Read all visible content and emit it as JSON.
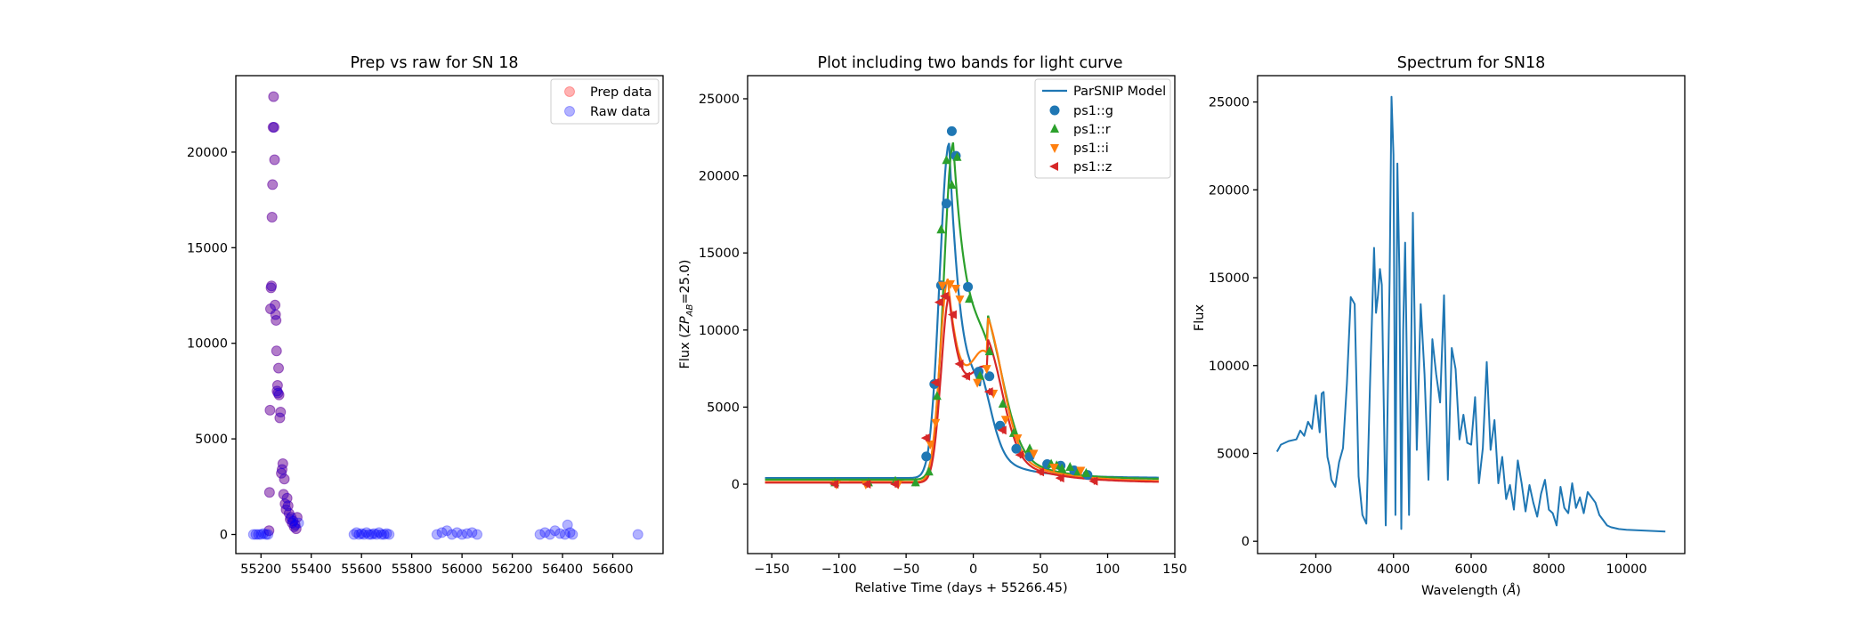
{
  "chart_data": [
    {
      "type": "scatter",
      "title": "Prep vs raw for SN 18",
      "xlabel": "",
      "ylabel": "",
      "xlim": [
        55100,
        56800
      ],
      "ylim": [
        -1000,
        24000
      ],
      "xticks": [
        "55200",
        "55400",
        "55600",
        "55800",
        "56000",
        "56200",
        "56400",
        "56600"
      ],
      "yticks": [
        "0",
        "5000",
        "10000",
        "15000",
        "20000"
      ],
      "legend_position": "top-right",
      "series": [
        {
          "name": "Prep data",
          "color": "#ff0000",
          "x": [
            55232,
            55234,
            55236,
            55238,
            55240,
            55242,
            55244,
            55246,
            55248,
            55250,
            55252,
            55254,
            55256,
            55258,
            55260,
            55262,
            55264,
            55266,
            55268,
            55270,
            55272,
            55275,
            55278,
            55281,
            55284,
            55287,
            55290,
            55293,
            55296,
            55300,
            55304,
            55308,
            55312,
            55316,
            55320,
            55324,
            55328,
            55332,
            55336,
            55340,
            55344
          ],
          "y": [
            200,
            2200,
            6500,
            11800,
            12900,
            13000,
            16600,
            18300,
            21300,
            22900,
            21300,
            19600,
            12000,
            11500,
            11200,
            9600,
            7500,
            7800,
            7400,
            8700,
            7300,
            6100,
            6400,
            3200,
            3400,
            3700,
            2100,
            2900,
            1600,
            1300,
            1900,
            1500,
            1100,
            800,
            900,
            600,
            700,
            400,
            500,
            300,
            900
          ]
        },
        {
          "name": "Raw data",
          "color": "#0000ff",
          "x": [
            55170,
            55180,
            55190,
            55200,
            55210,
            55220,
            55228,
            55232,
            55234,
            55236,
            55238,
            55240,
            55242,
            55244,
            55246,
            55248,
            55250,
            55252,
            55254,
            55256,
            55258,
            55260,
            55262,
            55264,
            55266,
            55268,
            55270,
            55272,
            55275,
            55278,
            55281,
            55284,
            55287,
            55290,
            55293,
            55296,
            55300,
            55304,
            55308,
            55312,
            55316,
            55320,
            55324,
            55328,
            55332,
            55336,
            55340,
            55344,
            55350,
            55570,
            55580,
            55590,
            55600,
            55610,
            55620,
            55630,
            55640,
            55650,
            55660,
            55670,
            55680,
            55690,
            55700,
            55710,
            55900,
            55920,
            55940,
            55960,
            55980,
            56000,
            56020,
            56040,
            56060,
            56310,
            56330,
            56350,
            56370,
            56390,
            56410,
            56420,
            56430,
            56440,
            56700
          ],
          "y": [
            0,
            0,
            0,
            0,
            50,
            0,
            0,
            200,
            2200,
            6500,
            11800,
            12900,
            13000,
            16600,
            18300,
            21300,
            22900,
            21300,
            19600,
            12000,
            11500,
            11200,
            9600,
            7500,
            7800,
            7400,
            8700,
            7300,
            6100,
            6400,
            3200,
            3400,
            3700,
            2100,
            2900,
            1600,
            1300,
            1900,
            1500,
            1100,
            800,
            900,
            600,
            700,
            400,
            500,
            300,
            900,
            600,
            0,
            100,
            0,
            50,
            0,
            100,
            0,
            0,
            50,
            0,
            100,
            0,
            0,
            50,
            0,
            0,
            100,
            200,
            0,
            100,
            0,
            50,
            100,
            0,
            0,
            100,
            0,
            200,
            50,
            0,
            500,
            100,
            0,
            0
          ]
        }
      ]
    },
    {
      "type": "line",
      "title": "Plot including two bands for light curve",
      "xlabel": "Relative Time (days + 55266.45)",
      "ylabel": "Flux (ZP_AB=25.0)",
      "ylabel_main": "Flux (",
      "ylabel_zp": "ZP",
      "ylabel_sub": "AB",
      "ylabel_tail": "=25.0)",
      "xlim": [
        -168,
        150
      ],
      "ylim": [
        -4500,
        26500
      ],
      "xticks": [
        "-150",
        "-100",
        "-50",
        "0",
        "50",
        "100",
        "150"
      ],
      "yticks": [
        "0",
        "5000",
        "10000",
        "15000",
        "20000",
        "25000"
      ],
      "legend_position": "top-right",
      "model_label": "ParSNIP Model",
      "series": [
        {
          "name": "ps1::g",
          "color": "#1f77b4",
          "marker": "circle",
          "model": {
            "base": 400,
            "peak_t": -18,
            "peak": 21600,
            "rise": 7,
            "decay": 11,
            "shoulder_t": 5,
            "shoulder": 3300,
            "shoulder_w": 9
          },
          "points": {
            "x": [
              -35,
              -29,
              -24,
              -20,
              -16,
              -13,
              -4,
              4,
              12,
              20,
              32,
              42,
              55,
              65,
              75,
              85
            ],
            "y": [
              1800,
              6500,
              12900,
              18200,
              22900,
              21300,
              12800,
              7300,
              7000,
              3800,
              2300,
              1800,
              1300,
              1200,
              900,
              600
            ]
          }
        },
        {
          "name": "ps1::r",
          "color": "#2ca02c",
          "marker": "triangle-up",
          "model": {
            "base": 300,
            "peak_t": -15,
            "peak": 21000,
            "rise": 7,
            "decay": 14,
            "shoulder_t": 10,
            "shoulder": 5500,
            "shoulder_w": 13
          },
          "points": {
            "x": [
              -103,
              -78,
              -58,
              -43,
              -33,
              -27,
              -24,
              -20,
              -16,
              -12,
              -3,
              5,
              12,
              22,
              30,
              42,
              58,
              62,
              66,
              72,
              78,
              84
            ],
            "y": [
              100,
              100,
              200,
              100,
              800,
              5700,
              16500,
              21000,
              19400,
              21200,
              12000,
              7000,
              8600,
              5200,
              3300,
              2300,
              1300,
              1200,
              1000,
              1100,
              800,
              700
            ]
          }
        },
        {
          "name": "ps1::i",
          "color": "#ff7f0e",
          "marker": "triangle-down",
          "model": {
            "base": 150,
            "peak_t": -19,
            "peak": 12800,
            "rise": 6,
            "decay": 13,
            "shoulder_t": 10,
            "shoulder": 7000,
            "shoulder_w": 12
          },
          "points": {
            "x": [
              -102,
              -80,
              -56,
              -32,
              -28,
              -23,
              -17,
              -13,
              -10,
              3,
              10,
              15,
              24,
              33,
              45,
              60,
              80
            ],
            "y": [
              0,
              0,
              0,
              2600,
              4000,
              12900,
              13000,
              12700,
              12000,
              6600,
              7500,
              5900,
              4200,
              3000,
              2000,
              1100,
              900
            ]
          }
        },
        {
          "name": "ps1::z",
          "color": "#d62728",
          "marker": "triangle-left",
          "model": {
            "base": 100,
            "peak_t": -18,
            "peak": 11700,
            "rise": 6,
            "decay": 13,
            "shoulder_t": 10,
            "shoulder": 6000,
            "shoulder_w": 12
          },
          "points": {
            "x": [
              -103,
              -79,
              -58,
              -35,
              -28,
              -25,
              -21,
              -15,
              -10,
              -5,
              12,
              22,
              35,
              50,
              65,
              90
            ],
            "y": [
              0,
              0,
              0,
              3000,
              6600,
              11800,
              12200,
              11000,
              7800,
              7000,
              6000,
              3500,
              1900,
              800,
              400,
              200
            ]
          }
        }
      ]
    },
    {
      "type": "line",
      "title": "Spectrum for SN18",
      "xlabel": "Wavelength (Å)",
      "xlabel_main": "Wavelength (",
      "xlabel_unit": "Å",
      "xlabel_tail": ")",
      "ylabel": "Flux",
      "xlim": [
        500,
        11500
      ],
      "ylim": [
        -700,
        26500
      ],
      "xticks": [
        "2000",
        "4000",
        "6000",
        "8000",
        "10000"
      ],
      "yticks": [
        "0",
        "5000",
        "10000",
        "15000",
        "20000",
        "25000"
      ],
      "series": [
        {
          "color": "#1f77b4",
          "x": [
            1000,
            1100,
            1300,
            1500,
            1600,
            1700,
            1800,
            1900,
            2000,
            2100,
            2150,
            2200,
            2300,
            2350,
            2400,
            2500,
            2600,
            2700,
            2800,
            2900,
            3000,
            3100,
            3200,
            3300,
            3400,
            3500,
            3550,
            3600,
            3650,
            3700,
            3800,
            3900,
            3950,
            4000,
            4050,
            4100,
            4150,
            4200,
            4250,
            4300,
            4400,
            4500,
            4600,
            4700,
            4800,
            4900,
            5000,
            5100,
            5200,
            5300,
            5400,
            5500,
            5600,
            5700,
            5800,
            5900,
            6000,
            6100,
            6200,
            6300,
            6400,
            6500,
            6600,
            6700,
            6800,
            6900,
            7000,
            7100,
            7200,
            7300,
            7400,
            7500,
            7600,
            7700,
            7800,
            7900,
            8000,
            8100,
            8200,
            8300,
            8400,
            8500,
            8600,
            8700,
            8800,
            8900,
            9000,
            9100,
            9200,
            9300,
            9400,
            9500,
            9600,
            9700,
            9800,
            10000,
            10500,
            11000
          ],
          "y": [
            5100,
            5500,
            5700,
            5800,
            6300,
            6000,
            6800,
            6400,
            8300,
            6200,
            8400,
            8500,
            4800,
            4300,
            3500,
            3100,
            4500,
            5300,
            9000,
            13900,
            13500,
            3700,
            1500,
            1000,
            9200,
            16700,
            13000,
            14000,
            15500,
            14600,
            900,
            15000,
            25300,
            22000,
            1500,
            21500,
            15500,
            700,
            12000,
            17000,
            1500,
            18700,
            5200,
            13500,
            9500,
            3500,
            11500,
            9500,
            7900,
            14000,
            3500,
            11000,
            9800,
            5800,
            7200,
            5600,
            5500,
            8200,
            3300,
            5300,
            10200,
            5200,
            6900,
            3300,
            4800,
            2400,
            3200,
            1800,
            4600,
            3300,
            1700,
            3200,
            2200,
            1400,
            2700,
            3500,
            1800,
            1600,
            900,
            3100,
            1900,
            1600,
            3300,
            1900,
            2500,
            1600,
            2800,
            2500,
            2200,
            1500,
            1200,
            900,
            800,
            750,
            700,
            650,
            600,
            550
          ]
        }
      ]
    }
  ]
}
